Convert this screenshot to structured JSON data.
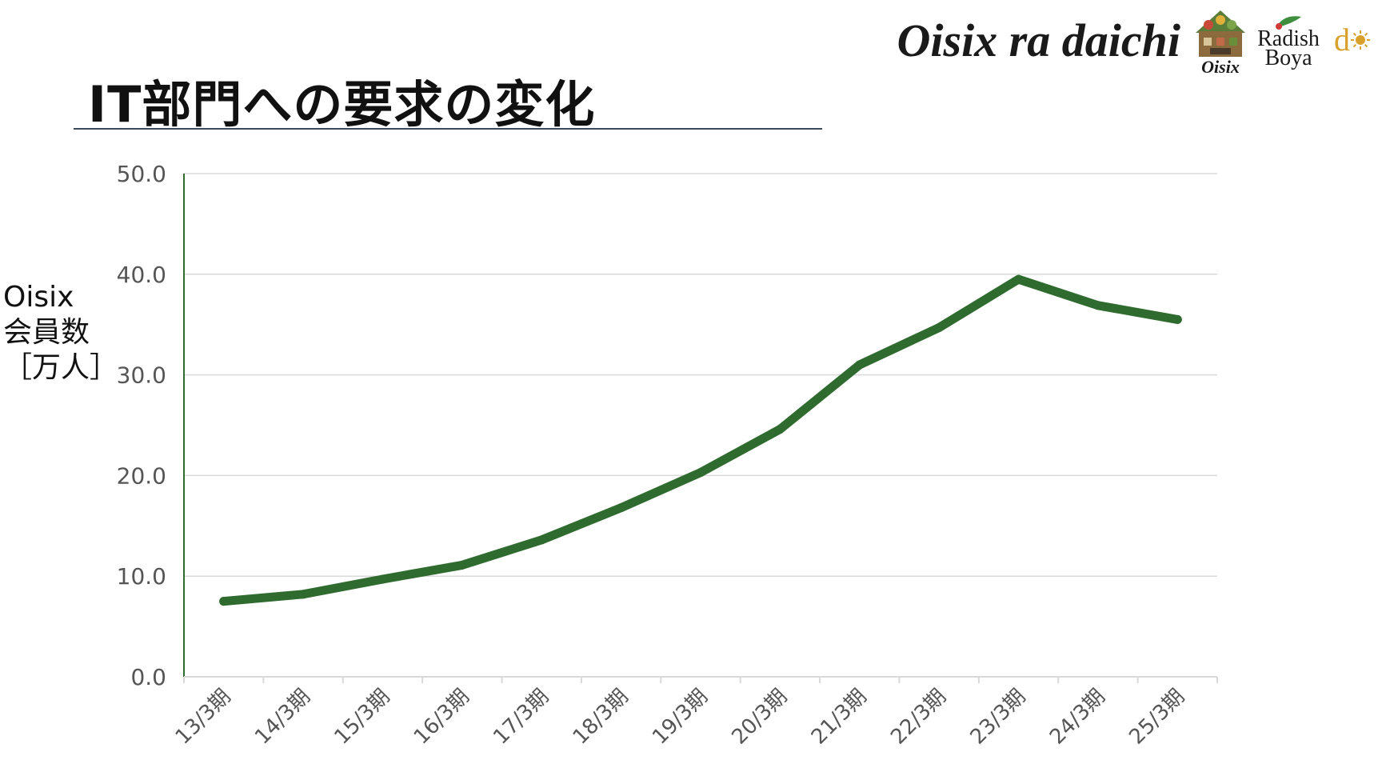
{
  "page": {
    "title": "IT部門への要求の変化"
  },
  "brand": {
    "name": "Oisix ra daichi",
    "logos": [
      {
        "label": "Oisix",
        "icon": "oisix-basket-logo"
      },
      {
        "label_line1": "Radish",
        "label_line2": "Boya",
        "icon": "radish-boya-logo"
      },
      {
        "label": "do",
        "icon": "daichi-do-logo"
      }
    ]
  },
  "colors": {
    "line": "#2f6b2f",
    "grid": "#d9d9d9",
    "axis": "#2f6b2f",
    "tick_text": "#555555",
    "logo_gold": "#d9a12b"
  },
  "chart_data": {
    "type": "line",
    "ylabel_lines": [
      "Oisix",
      "会員数",
      "［万人］"
    ],
    "xlabel": "",
    "categories": [
      "13/3期",
      "14/3期",
      "15/3期",
      "16/3期",
      "17/3期",
      "18/3期",
      "19/3期",
      "20/3期",
      "21/3期",
      "22/3期",
      "23/3期",
      "24/3期",
      "25/3期"
    ],
    "series": [
      {
        "values": [
          7.5,
          8.2,
          9.7,
          11.1,
          13.6,
          16.8,
          20.3,
          24.6,
          31.0,
          34.7,
          39.5,
          36.9,
          35.5
        ]
      }
    ],
    "yticks": [
      "0.0",
      "10.0",
      "20.0",
      "30.0",
      "40.0",
      "50.0"
    ],
    "ylim": [
      0,
      50
    ],
    "grid": true,
    "legend": "none"
  }
}
